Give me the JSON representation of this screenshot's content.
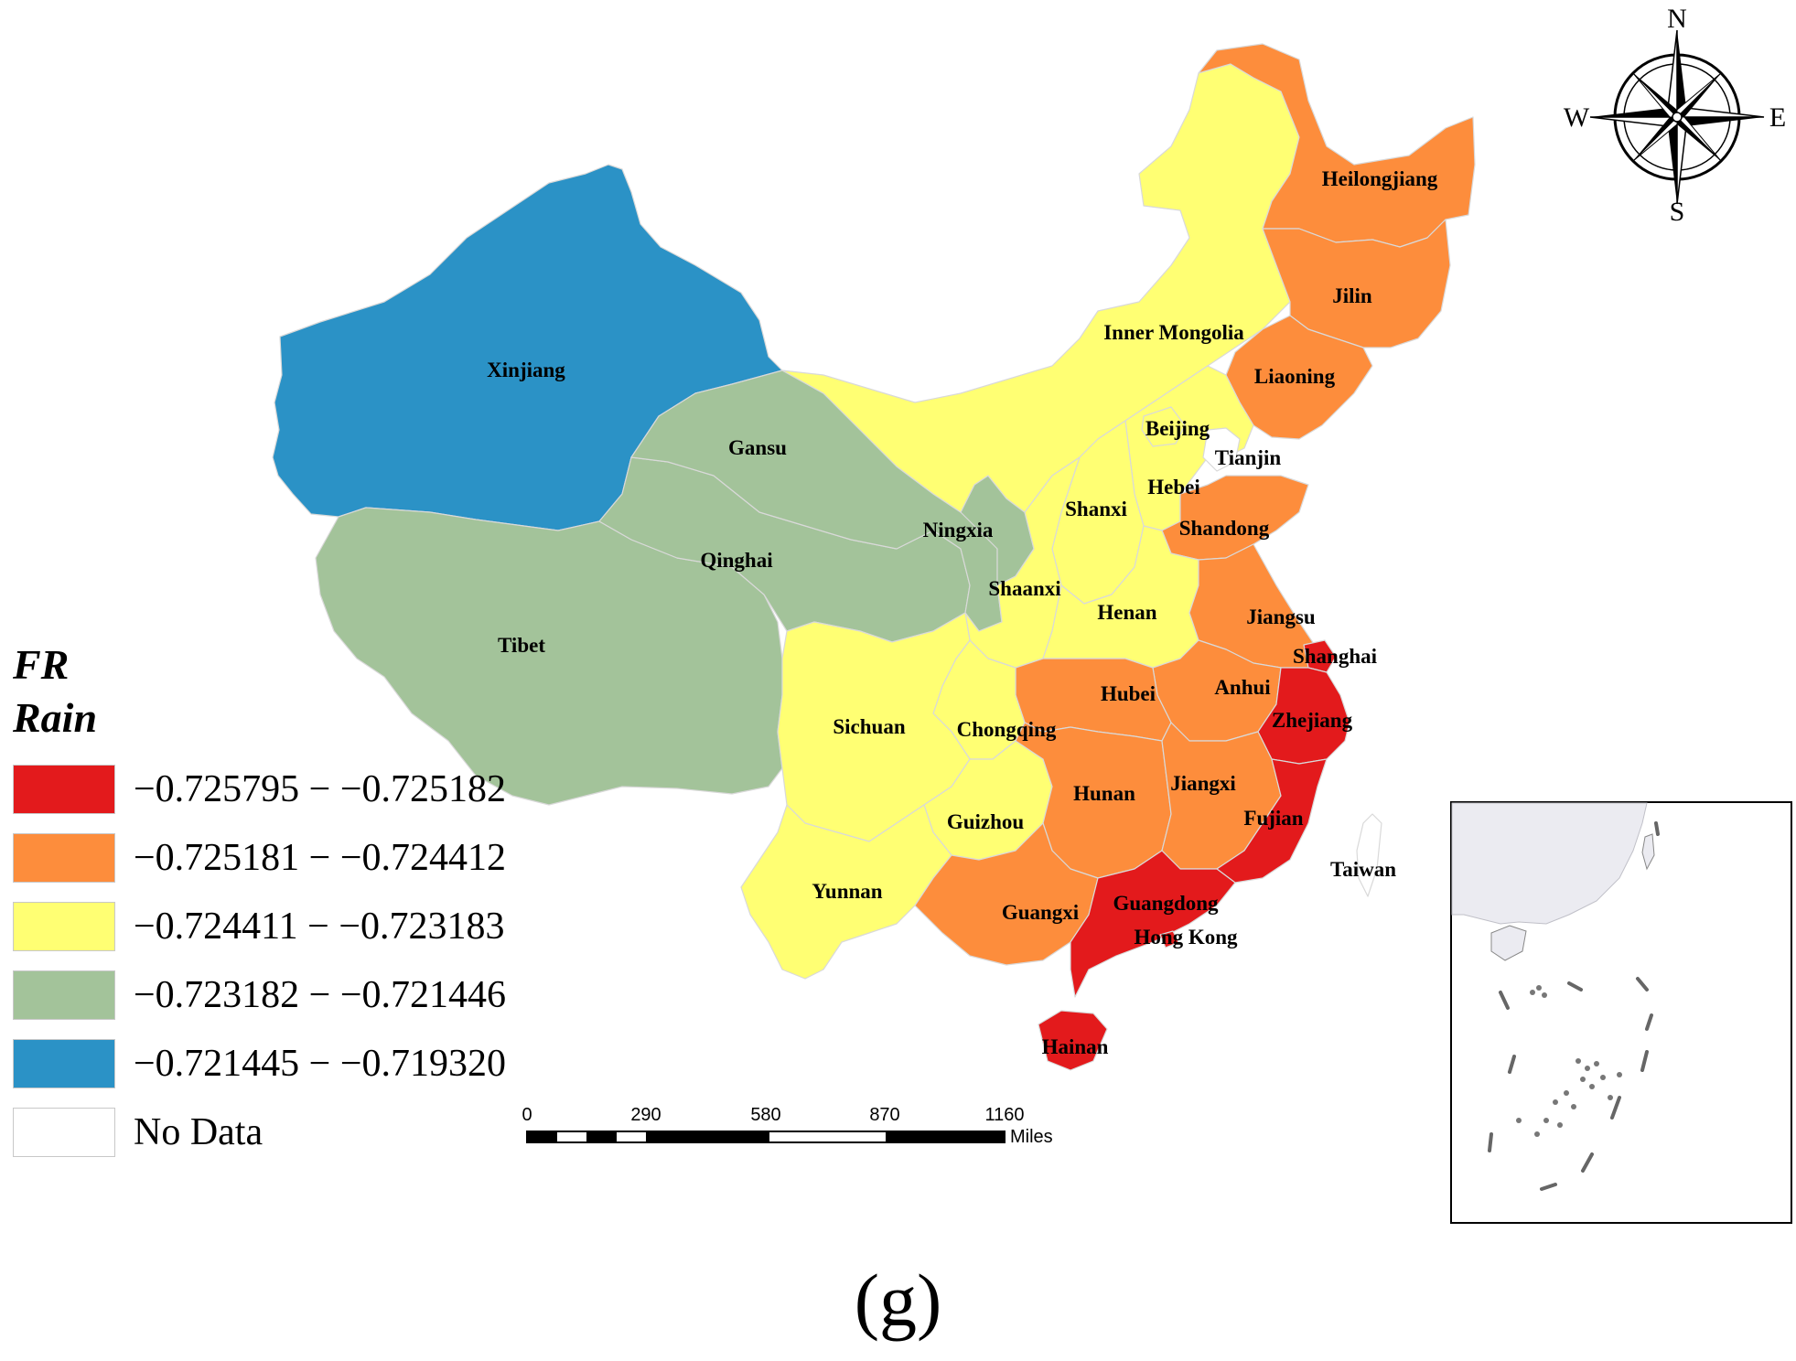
{
  "legend": {
    "title_line1": "FR",
    "title_line2": "Rain",
    "classes": [
      {
        "label": "−0.725795 − −0.725182",
        "color": "#e31a1c"
      },
      {
        "label": "−0.725181 − −0.724412",
        "color": "#fd8d3c"
      },
      {
        "label": "−0.724411 − −0.723183",
        "color": "#ffff73"
      },
      {
        "label": "−0.723182 − −0.721446",
        "color": "#a3c39a"
      },
      {
        "label": "−0.721445 − −0.719320",
        "color": "#2b92c6"
      },
      {
        "label": "No Data",
        "color": "#ffffff"
      }
    ]
  },
  "provinces": {
    "xinjiang": {
      "name": "Xinjiang",
      "class": 4
    },
    "tibet": {
      "name": "Tibet",
      "class": 3
    },
    "qinghai": {
      "name": "Qinghai",
      "class": 3
    },
    "gansu": {
      "name": "Gansu",
      "class": 3
    },
    "ningxia": {
      "name": "Ningxia",
      "class": 3
    },
    "inner_mongolia": {
      "name": "Inner Mongolia",
      "class": 2
    },
    "heilongjiang": {
      "name": "Heilongjiang",
      "class": 1
    },
    "jilin": {
      "name": "Jilin",
      "class": 1
    },
    "liaoning": {
      "name": "Liaoning",
      "class": 1
    },
    "beijing": {
      "name": "Beijing",
      "class": 2
    },
    "tianjin": {
      "name": "Tianjin",
      "class": 5
    },
    "hebei": {
      "name": "Hebei",
      "class": 2
    },
    "shanxi": {
      "name": "Shanxi",
      "class": 2
    },
    "shandong": {
      "name": "Shandong",
      "class": 1
    },
    "shaanxi": {
      "name": "Shaanxi",
      "class": 2
    },
    "henan": {
      "name": "Henan",
      "class": 2
    },
    "jiangsu": {
      "name": "Jiangsu",
      "class": 1
    },
    "shanghai": {
      "name": "Shanghai",
      "class": 0
    },
    "anhui": {
      "name": "Anhui",
      "class": 1
    },
    "hubei": {
      "name": "Hubei",
      "class": 1
    },
    "zhejiang": {
      "name": "Zhejiang",
      "class": 0
    },
    "sichuan": {
      "name": "Sichuan",
      "class": 2
    },
    "chongqing": {
      "name": "Chongqing",
      "class": 2
    },
    "hunan": {
      "name": "Hunan",
      "class": 1
    },
    "jiangxi": {
      "name": "Jiangxi",
      "class": 1
    },
    "fujian": {
      "name": "Fujian",
      "class": 0
    },
    "guizhou": {
      "name": "Guizhou",
      "class": 2
    },
    "yunnan": {
      "name": "Yunnan",
      "class": 2
    },
    "guangxi": {
      "name": "Guangxi",
      "class": 1
    },
    "guangdong": {
      "name": "Guangdong",
      "class": 0
    },
    "hong_kong": {
      "name": "Hong Kong",
      "class": 0
    },
    "hainan": {
      "name": "Hainan",
      "class": 0
    },
    "taiwan": {
      "name": "Taiwan",
      "class": 5
    }
  },
  "scale_bar": {
    "ticks": [
      "0",
      "290",
      "580",
      "870",
      "1160"
    ],
    "unit": "Miles"
  },
  "compass": {
    "n": "N",
    "s": "S",
    "e": "E",
    "w": "W"
  },
  "panel_label": "(g)"
}
